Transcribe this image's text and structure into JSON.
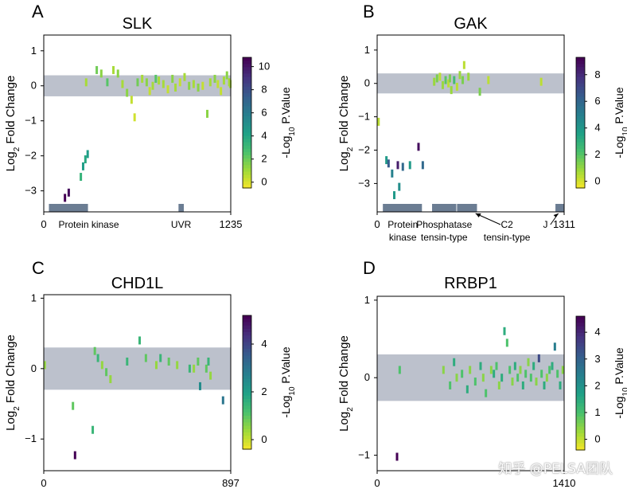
{
  "colors": {
    "band": "#bcc1cc",
    "domain": "#6b7d93",
    "viridis": [
      "#fde725",
      "#a0da39",
      "#4ac16d",
      "#1fa187",
      "#277f8e",
      "#365c8d",
      "#46327e",
      "#440154"
    ]
  },
  "chart_data": [
    {
      "type": "scatter",
      "panel": "A",
      "title": "SLK",
      "ylabel_pre": "Log",
      "ylabel_sub": "2",
      "ylabel_post": " Fold Change",
      "ylim": [
        -3.6,
        1.45
      ],
      "yticks": [
        -3,
        -2,
        -1,
        0,
        1
      ],
      "band": [
        -0.3,
        0.3
      ],
      "length": 1235,
      "xtick_start": "0",
      "xtick_end": "1235",
      "colorbar": {
        "label_pre": "-Log",
        "label_sub": "10",
        "label_post": " P.Value",
        "min": -0.5,
        "max": 10.8,
        "ticks": [
          0,
          2,
          4,
          6,
          8,
          10
        ]
      },
      "domains": [
        {
          "name": "Protein kinase",
          "start": 34,
          "end": 292
        },
        {
          "name": "UVR",
          "start": 890,
          "end": 925
        }
      ],
      "points": [
        [
          140,
          -3.2,
          10.8
        ],
        [
          165,
          -3.05,
          10.5
        ],
        [
          245,
          -2.6,
          3.5
        ],
        [
          260,
          -2.3,
          4.5
        ],
        [
          275,
          -2.1,
          4.0
        ],
        [
          290,
          -1.95,
          4.5
        ],
        [
          280,
          0.1,
          1.0
        ],
        [
          350,
          0.45,
          2.0
        ],
        [
          380,
          0.35,
          1.5
        ],
        [
          420,
          0.1,
          2.5
        ],
        [
          460,
          0.45,
          1.0
        ],
        [
          490,
          0.35,
          1.5
        ],
        [
          520,
          0.05,
          1.0
        ],
        [
          550,
          -0.2,
          1.5
        ],
        [
          580,
          -0.4,
          0.5
        ],
        [
          600,
          -0.9,
          0.3
        ],
        [
          620,
          0.1,
          2.0
        ],
        [
          650,
          0.2,
          1.0
        ],
        [
          680,
          0.1,
          1.5
        ],
        [
          700,
          -0.15,
          0.5
        ],
        [
          720,
          0.0,
          1.0
        ],
        [
          740,
          0.2,
          2.5
        ],
        [
          760,
          0.15,
          1.0
        ],
        [
          790,
          0.05,
          1.0
        ],
        [
          820,
          -0.1,
          0.5
        ],
        [
          850,
          0.2,
          1.5
        ],
        [
          870,
          -0.05,
          1.0
        ],
        [
          900,
          0.1,
          0.5
        ],
        [
          930,
          0.25,
          1.0
        ],
        [
          960,
          0.0,
          1.5
        ],
        [
          990,
          0.05,
          1.0
        ],
        [
          1020,
          -0.05,
          1.5
        ],
        [
          1050,
          0.0,
          0.5
        ],
        [
          1080,
          -0.8,
          1.5
        ],
        [
          1100,
          0.1,
          1.0
        ],
        [
          1130,
          0.2,
          1.5
        ],
        [
          1150,
          0.05,
          0.5
        ],
        [
          1170,
          -0.15,
          0.5
        ],
        [
          1190,
          0.15,
          1.0
        ],
        [
          1210,
          0.3,
          1.5
        ],
        [
          1225,
          0.1,
          1.0
        ],
        [
          1232,
          0.05,
          1.0
        ]
      ]
    },
    {
      "type": "scatter",
      "panel": "B",
      "title": "GAK",
      "ylabel_pre": "Log",
      "ylabel_sub": "2",
      "ylabel_post": " Fold Change",
      "ylim": [
        -3.85,
        1.45
      ],
      "yticks": [
        -3,
        -2,
        -1,
        0,
        1
      ],
      "band": [
        -0.3,
        0.3
      ],
      "length": 1311,
      "xtick_start": "0",
      "xtick_end": "1311",
      "colorbar": {
        "label_pre": "-Log",
        "label_sub": "10",
        "label_post": " P.Value",
        "min": -0.5,
        "max": 9.3,
        "ticks": [
          0,
          2,
          4,
          6,
          8
        ]
      },
      "domains": [
        {
          "name": "Protein kinase",
          "start": 40,
          "end": 314,
          "label": [
            "Protein",
            "kinase"
          ]
        },
        {
          "name": "Phosphatase tensin-type",
          "start": 385,
          "end": 555,
          "label": [
            "Phosphatase",
            "tensin-type"
          ]
        },
        {
          "name": "C2 tensin-type",
          "start": 560,
          "end": 700,
          "label": [
            "C2",
            "tensin-type"
          ]
        },
        {
          "name": "J",
          "start": 1250,
          "end": 1311,
          "label": [
            "J"
          ]
        }
      ],
      "points": [
        [
          10,
          -1.15,
          0.5
        ],
        [
          65,
          -2.3,
          4.0
        ],
        [
          80,
          -2.4,
          6.5
        ],
        [
          105,
          -2.7,
          5.0
        ],
        [
          120,
          -3.35,
          4.0
        ],
        [
          145,
          -2.45,
          8.5
        ],
        [
          155,
          -3.1,
          4.5
        ],
        [
          180,
          -2.5,
          6.0
        ],
        [
          230,
          -2.45,
          4.0
        ],
        [
          290,
          -1.9,
          9.0
        ],
        [
          320,
          -2.45,
          6.0
        ],
        [
          400,
          0.05,
          1.0
        ],
        [
          420,
          0.15,
          1.5
        ],
        [
          440,
          0.2,
          0.5
        ],
        [
          460,
          -0.05,
          1.0
        ],
        [
          480,
          0.1,
          2.0
        ],
        [
          500,
          0.0,
          0.5
        ],
        [
          510,
          0.15,
          1.5
        ],
        [
          520,
          -0.2,
          1.0
        ],
        [
          540,
          0.1,
          2.5
        ],
        [
          560,
          -0.1,
          0.5
        ],
        [
          580,
          0.25,
          1.0
        ],
        [
          600,
          0.1,
          1.5
        ],
        [
          610,
          0.55,
          0.5
        ],
        [
          640,
          0.2,
          1.0
        ],
        [
          720,
          -0.25,
          1.5
        ],
        [
          780,
          0.1,
          0.5
        ],
        [
          1150,
          0.05,
          0.5
        ]
      ]
    },
    {
      "type": "scatter",
      "panel": "C",
      "title": "CHD1L",
      "ylabel_pre": "Log",
      "ylabel_sub": "2",
      "ylabel_post": " Fold Change",
      "ylim": [
        -1.45,
        1.05
      ],
      "yticks": [
        -1,
        0,
        1
      ],
      "band": [
        -0.3,
        0.3
      ],
      "length": 897,
      "xtick_start": "0",
      "xtick_end": "897",
      "colorbar": {
        "label_pre": "-Log",
        "label_sub": "10",
        "label_post": " P.Value",
        "min": -0.4,
        "max": 5.2,
        "ticks": [
          0,
          2,
          4
        ]
      },
      "domains": [],
      "points": [
        [
          5,
          0.05,
          0.5
        ],
        [
          140,
          -0.53,
          1.0
        ],
        [
          150,
          -1.23,
          5.2
        ],
        [
          235,
          -0.87,
          1.5
        ],
        [
          245,
          0.25,
          1.0
        ],
        [
          260,
          0.15,
          1.5
        ],
        [
          280,
          0.05,
          0.5
        ],
        [
          300,
          -0.05,
          1.0
        ],
        [
          320,
          -0.15,
          0.5
        ],
        [
          400,
          0.1,
          1.5
        ],
        [
          460,
          0.4,
          1.5
        ],
        [
          490,
          0.15,
          1.0
        ],
        [
          540,
          0.05,
          0.5
        ],
        [
          560,
          0.15,
          1.5
        ],
        [
          600,
          0.1,
          1.0
        ],
        [
          640,
          0.05,
          0.5
        ],
        [
          700,
          0.0,
          1.5
        ],
        [
          720,
          0.0,
          0.5
        ],
        [
          740,
          0.1,
          1.0
        ],
        [
          750,
          -0.25,
          2.5
        ],
        [
          780,
          0.0,
          1.0
        ],
        [
          790,
          0.1,
          1.5
        ],
        [
          800,
          -0.1,
          0.5
        ],
        [
          860,
          -0.45,
          3.0
        ]
      ]
    },
    {
      "type": "scatter",
      "panel": "D",
      "title": "RRBP1",
      "ylabel_pre": "Log",
      "ylabel_sub": "2",
      "ylabel_post": " Fold Change",
      "ylim": [
        -1.2,
        1.05
      ],
      "yticks": [
        -1,
        0,
        1
      ],
      "band": [
        -0.3,
        0.3
      ],
      "length": 1410,
      "xtick_start": "0",
      "xtick_end": "1410",
      "colorbar": {
        "label_pre": "-Log",
        "label_sub": "10",
        "label_post": " P.Value",
        "min": -0.4,
        "max": 4.6,
        "ticks": [
          0,
          1,
          2,
          3,
          4
        ]
      },
      "domains": [],
      "points": [
        [
          150,
          -1.02,
          4.6
        ],
        [
          170,
          0.1,
          1.0
        ],
        [
          500,
          0.1,
          0.5
        ],
        [
          550,
          -0.1,
          1.0
        ],
        [
          580,
          0.2,
          1.5
        ],
        [
          600,
          0.0,
          0.5
        ],
        [
          640,
          0.05,
          1.0
        ],
        [
          680,
          -0.15,
          1.5
        ],
        [
          700,
          0.1,
          0.5
        ],
        [
          740,
          -0.05,
          1.0
        ],
        [
          780,
          0.15,
          1.5
        ],
        [
          800,
          0.0,
          0.5
        ],
        [
          820,
          -0.2,
          1.0
        ],
        [
          860,
          0.1,
          0.5
        ],
        [
          880,
          0.05,
          1.5
        ],
        [
          900,
          0.15,
          1.0
        ],
        [
          920,
          -0.1,
          0.5
        ],
        [
          940,
          0.0,
          1.5
        ],
        [
          960,
          0.6,
          1.5
        ],
        [
          980,
          0.45,
          1.0
        ],
        [
          1000,
          0.1,
          1.0
        ],
        [
          1020,
          -0.05,
          0.5
        ],
        [
          1040,
          0.15,
          1.5
        ],
        [
          1060,
          0.0,
          1.0
        ],
        [
          1080,
          0.1,
          0.5
        ],
        [
          1100,
          -0.1,
          1.5
        ],
        [
          1120,
          0.05,
          1.0
        ],
        [
          1140,
          0.2,
          0.5
        ],
        [
          1160,
          0.0,
          1.0
        ],
        [
          1180,
          0.15,
          1.5
        ],
        [
          1200,
          -0.05,
          0.5
        ],
        [
          1220,
          0.25,
          3.5
        ],
        [
          1240,
          0.05,
          1.0
        ],
        [
          1260,
          -0.1,
          1.5
        ],
        [
          1280,
          0.0,
          0.5
        ],
        [
          1300,
          0.1,
          1.0
        ],
        [
          1320,
          0.15,
          1.5
        ],
        [
          1340,
          0.4,
          2.5
        ],
        [
          1360,
          0.05,
          1.0
        ],
        [
          1380,
          -0.1,
          1.5
        ],
        [
          1400,
          0.1,
          0.5
        ]
      ]
    }
  ],
  "watermark": "知乎 @PELSA团队"
}
